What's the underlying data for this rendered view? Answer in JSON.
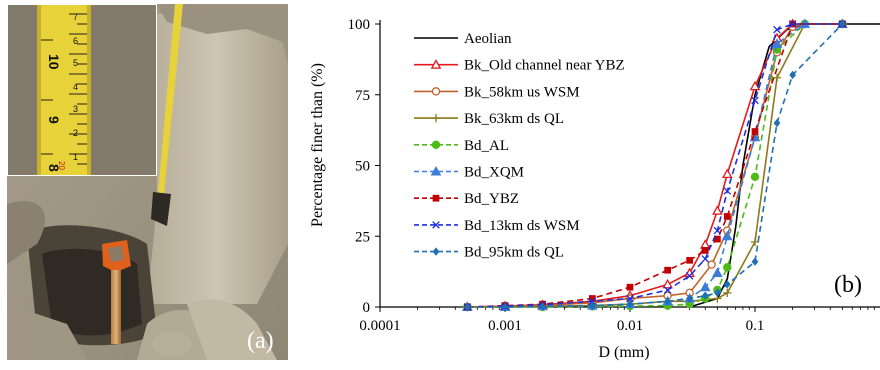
{
  "figure": {
    "photo_panel_label": "(a)",
    "chart_panel_label": "(b)",
    "ruler_numbers_vertical": [
      "7",
      "6",
      "5",
      "4",
      "3",
      "2",
      "1"
    ],
    "ruler_numbers_left": [
      "10",
      "9",
      "8"
    ],
    "ruler_numbers_red": [
      "20"
    ]
  },
  "chart_data": {
    "type": "line",
    "title": "",
    "xlabel": "D (mm)",
    "ylabel": "Percentage finer than (%)",
    "xscale": "log",
    "xlim": [
      0.0001,
      1
    ],
    "ylim": [
      0,
      100
    ],
    "x_ticks": [
      0.0001,
      0.001,
      0.01,
      0.1
    ],
    "x_tick_labels": [
      "0.0001",
      "0.001",
      "0.01",
      "0.1"
    ],
    "y_ticks": [
      0,
      25,
      50,
      75,
      100
    ],
    "y_tick_labels": [
      "0",
      "25",
      "50",
      "75",
      "100"
    ],
    "grid": false,
    "legend_position": "top-left",
    "series": [
      {
        "name": "Aeolian",
        "color": "#000000",
        "dash": "solid",
        "marker": "none",
        "points": [
          [
            0.03,
            0
          ],
          [
            0.05,
            3
          ],
          [
            0.06,
            10
          ],
          [
            0.07,
            28
          ],
          [
            0.08,
            50
          ],
          [
            0.1,
            75
          ],
          [
            0.13,
            92
          ],
          [
            0.18,
            98
          ],
          [
            0.25,
            100
          ],
          [
            1,
            100
          ]
        ]
      },
      {
        "name": "Bk_Old channel near YBZ",
        "color": "#e41a1c",
        "dash": "solid",
        "marker": "triangle-open",
        "points": [
          [
            0.0005,
            0
          ],
          [
            0.001,
            0.3
          ],
          [
            0.002,
            0.8
          ],
          [
            0.005,
            2
          ],
          [
            0.01,
            4
          ],
          [
            0.02,
            8
          ],
          [
            0.03,
            12
          ],
          [
            0.04,
            22
          ],
          [
            0.05,
            34
          ],
          [
            0.06,
            47
          ],
          [
            0.1,
            78
          ],
          [
            0.15,
            95
          ],
          [
            0.2,
            100
          ],
          [
            0.5,
            100
          ]
        ]
      },
      {
        "name": "Bk_58km us WSM",
        "color": "#c0622b",
        "dash": "solid",
        "marker": "circle-open",
        "points": [
          [
            0.0005,
            0
          ],
          [
            0.001,
            0.3
          ],
          [
            0.002,
            0.6
          ],
          [
            0.005,
            1.5
          ],
          [
            0.01,
            3
          ],
          [
            0.02,
            4
          ],
          [
            0.03,
            5
          ],
          [
            0.045,
            15
          ],
          [
            0.06,
            27
          ],
          [
            0.1,
            60
          ],
          [
            0.15,
            90
          ],
          [
            0.2,
            99
          ],
          [
            0.25,
            100
          ],
          [
            0.5,
            100
          ]
        ]
      },
      {
        "name": "Bk_63km ds QL",
        "color": "#8b7a1a",
        "dash": "solid",
        "marker": "plus",
        "points": [
          [
            0.0005,
            0
          ],
          [
            0.001,
            0
          ],
          [
            0.002,
            0.2
          ],
          [
            0.005,
            0.5
          ],
          [
            0.01,
            1
          ],
          [
            0.02,
            2
          ],
          [
            0.03,
            2
          ],
          [
            0.05,
            3
          ],
          [
            0.06,
            5
          ],
          [
            0.1,
            23
          ],
          [
            0.15,
            81
          ],
          [
            0.25,
            100
          ],
          [
            0.5,
            100
          ]
        ]
      },
      {
        "name": "Bd_AL",
        "color": "#4cbb17",
        "dash": "dashed",
        "marker": "circle-filled",
        "points": [
          [
            0.0005,
            0
          ],
          [
            0.001,
            0
          ],
          [
            0.002,
            0
          ],
          [
            0.005,
            0.2
          ],
          [
            0.01,
            0.3
          ],
          [
            0.02,
            0.5
          ],
          [
            0.03,
            1
          ],
          [
            0.04,
            3
          ],
          [
            0.05,
            6
          ],
          [
            0.06,
            14
          ],
          [
            0.1,
            46
          ],
          [
            0.15,
            91
          ],
          [
            0.25,
            100
          ],
          [
            0.5,
            100
          ]
        ]
      },
      {
        "name": "Bd_XQM",
        "color": "#3b7dd8",
        "dash": "dashed",
        "marker": "triangle-filled",
        "points": [
          [
            0.0005,
            0
          ],
          [
            0.001,
            0
          ],
          [
            0.002,
            0.3
          ],
          [
            0.005,
            0.5
          ],
          [
            0.01,
            1
          ],
          [
            0.02,
            2
          ],
          [
            0.03,
            3
          ],
          [
            0.04,
            7
          ],
          [
            0.05,
            12
          ],
          [
            0.06,
            25
          ],
          [
            0.1,
            60
          ],
          [
            0.15,
            93
          ],
          [
            0.25,
            100
          ],
          [
            0.5,
            100
          ]
        ]
      },
      {
        "name": "Bd_YBZ",
        "color": "#c00000",
        "dash": "dashed",
        "marker": "square-filled",
        "points": [
          [
            0.0005,
            0
          ],
          [
            0.001,
            0.5
          ],
          [
            0.002,
            1
          ],
          [
            0.005,
            3
          ],
          [
            0.01,
            7
          ],
          [
            0.02,
            13
          ],
          [
            0.03,
            16.5
          ],
          [
            0.04,
            20
          ],
          [
            0.05,
            24
          ],
          [
            0.06,
            32
          ],
          [
            0.1,
            62
          ],
          [
            0.2,
            100
          ],
          [
            0.5,
            100
          ]
        ]
      },
      {
        "name": "Bd_13km ds WSM",
        "color": "#1f2ee0",
        "dash": "dashed",
        "marker": "x",
        "points": [
          [
            0.0005,
            0
          ],
          [
            0.001,
            0.3
          ],
          [
            0.002,
            0.8
          ],
          [
            0.005,
            2
          ],
          [
            0.01,
            3
          ],
          [
            0.02,
            6
          ],
          [
            0.03,
            11
          ],
          [
            0.04,
            17
          ],
          [
            0.05,
            27
          ],
          [
            0.06,
            41
          ],
          [
            0.1,
            73
          ],
          [
            0.15,
            98
          ],
          [
            0.2,
            100
          ],
          [
            0.5,
            100
          ]
        ]
      },
      {
        "name": "Bd_95km ds QL",
        "color": "#1f6fb4",
        "dash": "dashed",
        "marker": "diamond-filled",
        "points": [
          [
            0.0005,
            0
          ],
          [
            0.001,
            0
          ],
          [
            0.002,
            0.2
          ],
          [
            0.005,
            0.5
          ],
          [
            0.01,
            1
          ],
          [
            0.02,
            2
          ],
          [
            0.03,
            3
          ],
          [
            0.04,
            4
          ],
          [
            0.05,
            5
          ],
          [
            0.06,
            8
          ],
          [
            0.1,
            16
          ],
          [
            0.15,
            65
          ],
          [
            0.2,
            82
          ],
          [
            0.5,
            100
          ]
        ]
      }
    ]
  }
}
